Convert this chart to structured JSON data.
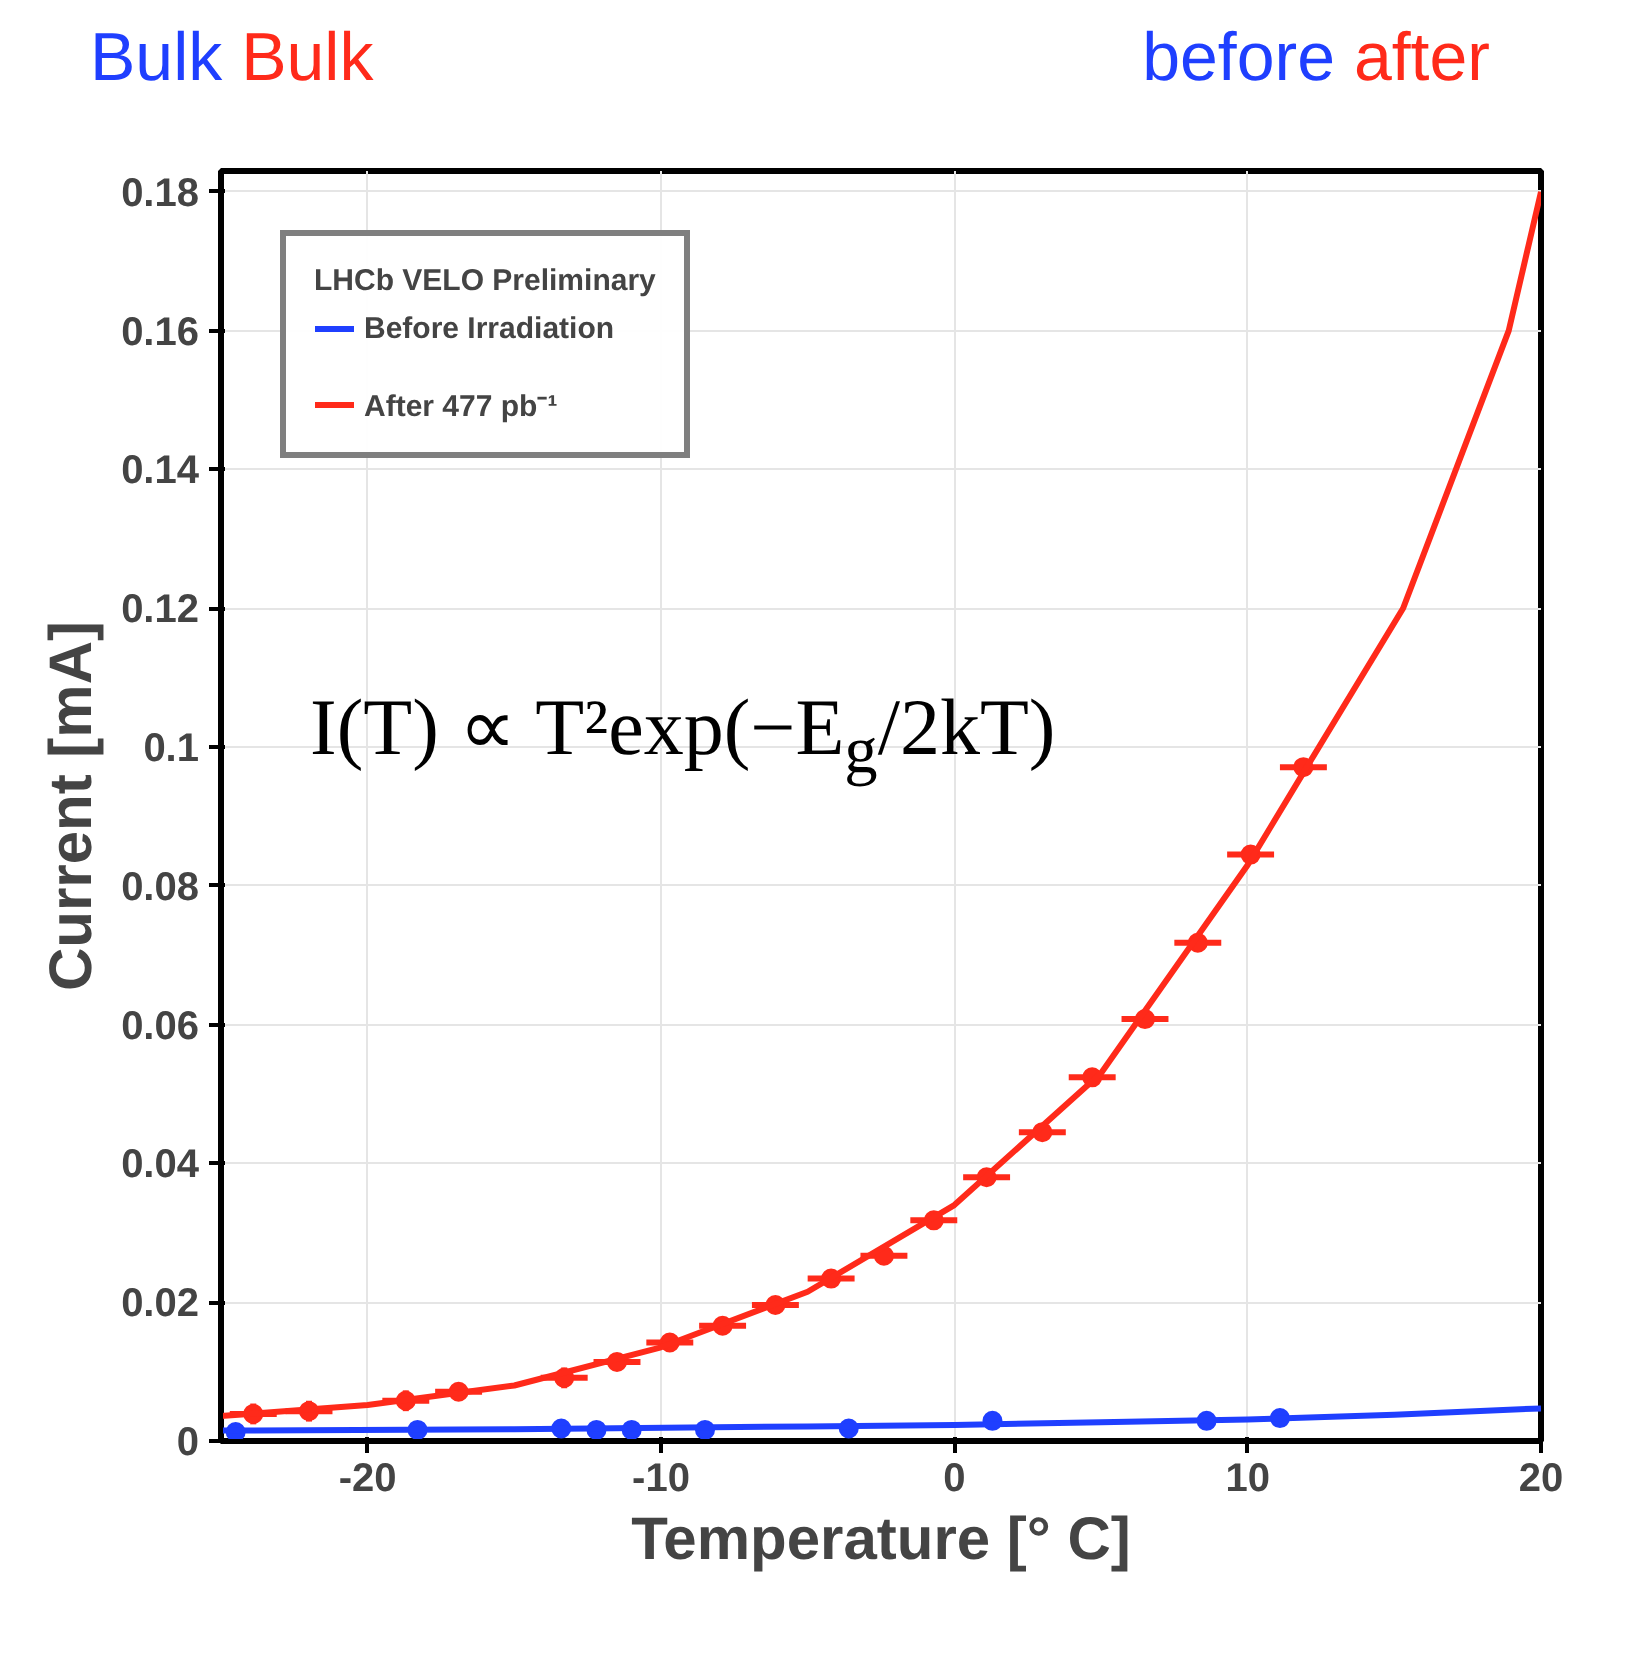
{
  "chart_data": {
    "type": "scatter",
    "xlabel": "Temperature [° C]",
    "ylabel": "Current [mA]",
    "legend_title": "LHCb VELO Preliminary",
    "annotations": [
      "Bulk",
      "Bulk",
      "before",
      "after",
      "I(T) ∝ T²exp(−E$_{g}$/2kT)"
    ],
    "xlim": [
      -25,
      20
    ],
    "ylim": [
      0,
      0.183
    ],
    "xticks": [
      -20,
      -10,
      0,
      10,
      20
    ],
    "yticks": [
      0,
      0.02,
      0.04,
      0.06,
      0.08,
      0.1,
      0.12,
      0.14,
      0.16,
      0.18
    ],
    "grid": true,
    "legend": "top left",
    "marker": "circle",
    "series": [
      {
        "name": "Before Irradiation",
        "color": "#1f3fff",
        "x": [
          -24.5,
          -18.3,
          -13.4,
          -12.2,
          -11.0,
          -8.5,
          -3.6,
          1.3,
          8.6,
          11.1
        ],
        "values": [
          0.0013,
          0.0016,
          0.0018,
          0.0016,
          0.0016,
          0.0016,
          0.0018,
          0.0029,
          0.0029,
          0.0033
        ]
      },
      {
        "name": "After 477 pb⁻¹",
        "color": "#ff2a1a",
        "x": [
          -23.9,
          -22.0,
          -18.7,
          -16.9,
          -13.3,
          -11.5,
          -9.7,
          -7.9,
          -6.1,
          -4.2,
          -2.4,
          -0.7,
          1.1,
          3.0,
          4.7,
          6.5,
          8.3,
          10.1,
          11.9
        ],
        "values": [
          0.0039,
          0.0043,
          0.0058,
          0.0071,
          0.0091,
          0.0114,
          0.0142,
          0.0166,
          0.0196,
          0.0234,
          0.0267,
          0.0318,
          0.038,
          0.0445,
          0.0524,
          0.0608,
          0.0718,
          0.0845,
          0.0971
        ],
        "errors": [
          0.0015,
          0.0015,
          0.0015,
          0.001,
          0.0015,
          null,
          null,
          null,
          null,
          null,
          null,
          null,
          null,
          null,
          null,
          null,
          null,
          null,
          null
        ],
        "xerrors": [
          0.8,
          0.8,
          0.8,
          0.8,
          0.8,
          0.8,
          0.8,
          0.8,
          0.8,
          0.8,
          0.8,
          0.8,
          0.8,
          0.8,
          0.8,
          0.8,
          0.8,
          0.8,
          0.8
        ]
      },
      {
        "type": "line",
        "marker": "none",
        "color": "#1f3fff",
        "x": [
          -25,
          -15,
          -5,
          0,
          5,
          10,
          15,
          20
        ],
        "values": [
          0.0015,
          0.0017,
          0.0021,
          0.0023,
          0.0027,
          0.0031,
          0.0038,
          0.0047
        ]
      },
      {
        "type": "line",
        "marker": "none",
        "color": "#ff2a1a",
        "x": [
          -25,
          -20,
          -15,
          -10,
          -5,
          0,
          5,
          10,
          12,
          15.3,
          18.9,
          20
        ],
        "values": [
          0.0036,
          0.0052,
          0.008,
          0.0135,
          0.0215,
          0.034,
          0.053,
          0.083,
          0.097,
          0.12,
          0.16,
          0.18
        ]
      }
    ]
  }
}
